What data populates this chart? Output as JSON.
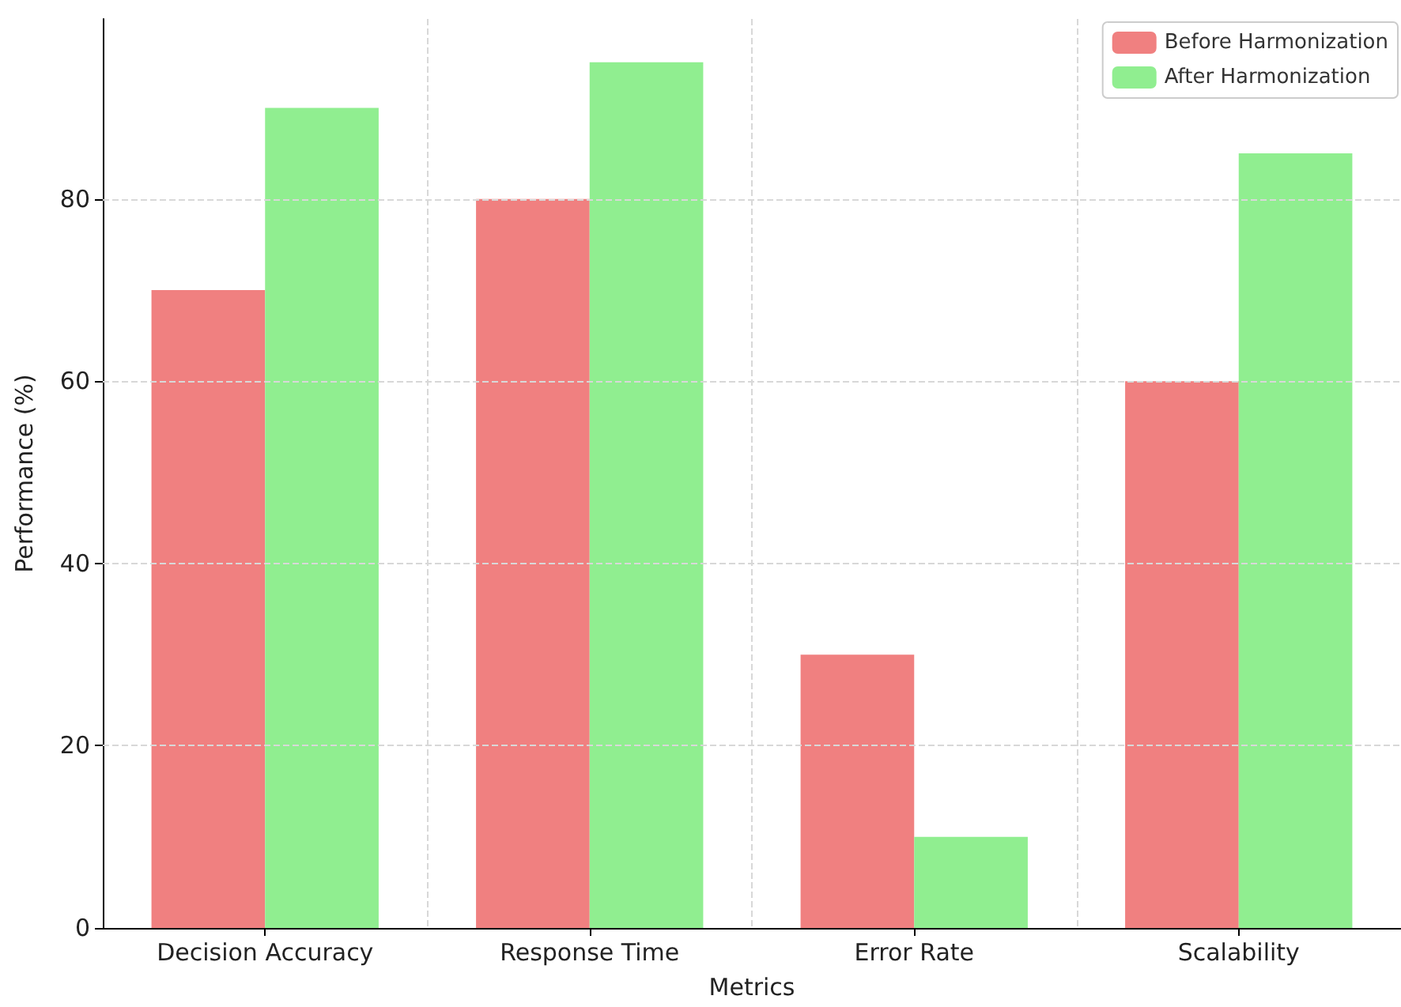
{
  "chart_data": {
    "type": "bar",
    "xlabel": "Metrics",
    "ylabel": "Performance (%)",
    "categories": [
      "Decision Accuracy",
      "Response Time",
      "Error Rate",
      "Scalability"
    ],
    "series": [
      {
        "name": "Before Harmonization",
        "color": "#f08080",
        "values": [
          70,
          80,
          30,
          60
        ]
      },
      {
        "name": "After Harmonization",
        "color": "#90ee90",
        "values": [
          90,
          95,
          10,
          85
        ]
      }
    ],
    "ylim": [
      0,
      99.75
    ],
    "yticks": [
      0,
      20,
      40,
      60,
      80
    ],
    "grid": true,
    "legend": "top right"
  }
}
